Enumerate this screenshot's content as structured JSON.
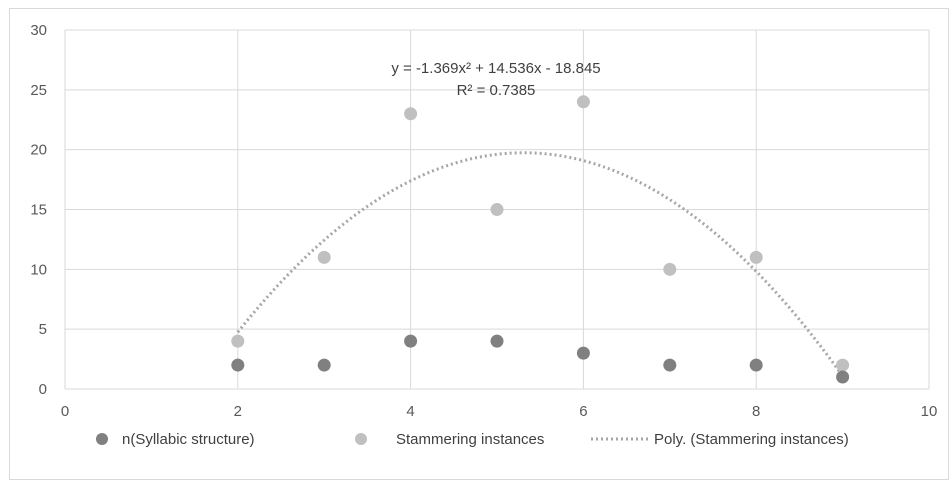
{
  "chart_data": {
    "type": "scatter",
    "xlim": [
      0,
      10
    ],
    "ylim": [
      0,
      30
    ],
    "x_ticks": [
      "0",
      "2",
      "4",
      "6",
      "8",
      "10"
    ],
    "y_ticks": [
      "0",
      "5",
      "10",
      "15",
      "20",
      "25",
      "30"
    ],
    "grid": true,
    "legend_position": "bottom",
    "series": [
      {
        "name": "n(Syllabic structure)",
        "color": "#808080",
        "points": [
          [
            2,
            2
          ],
          [
            3,
            2
          ],
          [
            4,
            4
          ],
          [
            5,
            4
          ],
          [
            6,
            3
          ],
          [
            7,
            2
          ],
          [
            8,
            2
          ],
          [
            9,
            1
          ]
        ]
      },
      {
        "name": "Stammering instances",
        "color": "#c0c0c0",
        "points": [
          [
            2,
            4
          ],
          [
            3,
            11
          ],
          [
            4,
            23
          ],
          [
            5,
            15
          ],
          [
            6,
            24
          ],
          [
            7,
            10
          ],
          [
            8,
            11
          ],
          [
            9,
            2
          ]
        ]
      }
    ],
    "trendline": {
      "name": "Poly. (Stammering instances)",
      "color": "#a6a6a6",
      "style": "dotted",
      "coefficients": {
        "a": -1.369,
        "b": 14.536,
        "c": -18.845
      },
      "x_range": [
        2,
        9
      ],
      "equation": "y = -1.369x² + 14.536x - 18.845",
      "r_squared": "R² = 0.7385"
    }
  }
}
